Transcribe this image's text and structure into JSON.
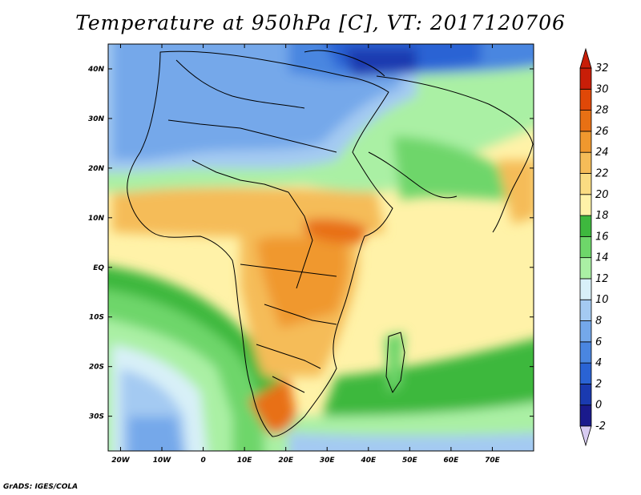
{
  "title": "Temperature at 950hPa [C], VT: 2017120706",
  "credit": "GrADS: IGES/COLA",
  "map": {
    "region": "Africa",
    "variable": "Temperature",
    "level": "950hPa",
    "unit": "C",
    "lon_range": [
      -23,
      80
    ],
    "lat_range": [
      -37,
      45
    ],
    "x_ticks": [
      {
        "lon": -20,
        "label": "20W"
      },
      {
        "lon": -10,
        "label": "10W"
      },
      {
        "lon": 0,
        "label": "0"
      },
      {
        "lon": 10,
        "label": "10E"
      },
      {
        "lon": 20,
        "label": "20E"
      },
      {
        "lon": 30,
        "label": "30E"
      },
      {
        "lon": 40,
        "label": "40E"
      },
      {
        "lon": 50,
        "label": "50E"
      },
      {
        "lon": 60,
        "label": "60E"
      },
      {
        "lon": 70,
        "label": "70E"
      }
    ],
    "y_ticks": [
      {
        "lat": 40,
        "label": "40N"
      },
      {
        "lat": 30,
        "label": "30N"
      },
      {
        "lat": 20,
        "label": "20N"
      },
      {
        "lat": 10,
        "label": "10N"
      },
      {
        "lat": 0,
        "label": "EQ"
      },
      {
        "lat": -10,
        "label": "10S"
      },
      {
        "lat": -20,
        "label": "20S"
      },
      {
        "lat": -30,
        "label": "30S"
      }
    ]
  },
  "colorbar": {
    "labels": [
      "32",
      "30",
      "28",
      "26",
      "24",
      "22",
      "20",
      "18",
      "16",
      "14",
      "12",
      "10",
      "8",
      "6",
      "4",
      "2",
      "0",
      "-2"
    ],
    "colors": [
      "#1a1a8c",
      "#1a3ab0",
      "#2a63d4",
      "#4a86e0",
      "#74a8ea",
      "#a4caf2",
      "#d8f0f8",
      "#aaf0a4",
      "#6ed66a",
      "#3eb83e",
      "#fff2a8",
      "#fadc82",
      "#f5bc58",
      "#f0982e",
      "#e87014",
      "#e04808",
      "#c81e08"
    ],
    "under_color": "#d8ccf2",
    "over_color": "#c81e08"
  }
}
